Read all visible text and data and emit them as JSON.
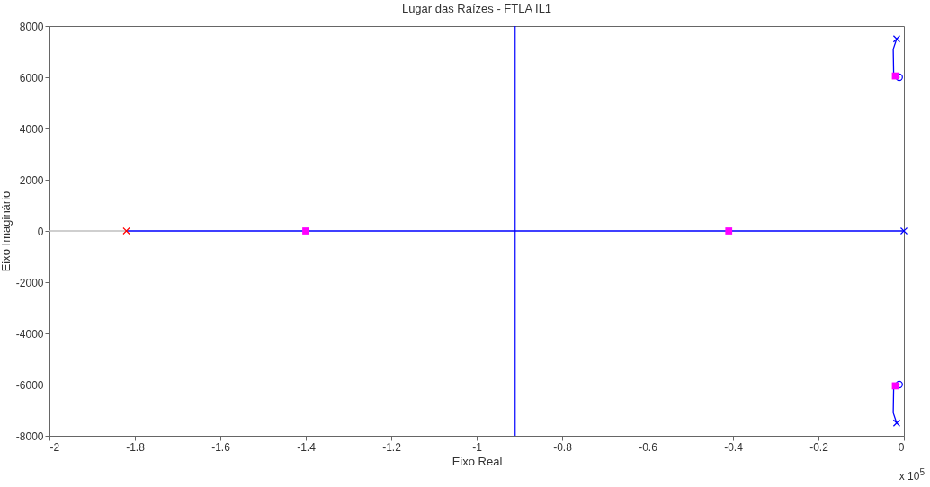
{
  "chart_data": {
    "type": "line",
    "title": "Lugar das Raízes - FTLA IL1",
    "xlabel": "Eixo Real",
    "ylabel": "Eixo Imaginário",
    "xlim": [
      -2,
      0
    ],
    "ylim": [
      -8000,
      8000
    ],
    "xticks": [
      -2,
      -1.8,
      -1.6,
      -1.4,
      -1.2,
      -1,
      -0.8,
      -0.6,
      -0.4,
      -0.2,
      0
    ],
    "yticks": [
      -8000,
      -6000,
      -4000,
      -2000,
      0,
      2000,
      4000,
      6000,
      8000
    ],
    "grid": false,
    "ref_lines": [
      {
        "axis": "x",
        "value": -0.91,
        "color": "#0000ff"
      }
    ],
    "annotations": [
      "x 10$^{5}$"
    ],
    "series": [
      {
        "color": "#c0c0c0",
        "x": [
          -2,
          -1.82
        ],
        "values": [
          0,
          0
        ]
      },
      {
        "color": "#0000ff",
        "x": [
          -1.82,
          0
        ],
        "values": [
          0,
          0
        ]
      },
      {
        "color": "#0000ff",
        "x": [
          -0.017,
          -0.025,
          -0.024,
          -0.016,
          -0.011
        ],
        "values": [
          7500,
          7100,
          6100,
          5950,
          6000
        ]
      },
      {
        "color": "#0000ff",
        "x": [
          -0.017,
          -0.025,
          -0.024,
          -0.016,
          -0.011
        ],
        "values": [
          -7500,
          -7100,
          -6100,
          -5950,
          -6000
        ]
      },
      {
        "type": "scatter",
        "marker": "cross",
        "color": "#ff0000",
        "x": [
          -1.82
        ],
        "values": [
          0
        ]
      },
      {
        "type": "scatter",
        "marker": "cross",
        "color": "#0000ff",
        "x": [
          0,
          -0.017,
          -0.017
        ],
        "values": [
          0,
          7500,
          -7500
        ]
      },
      {
        "type": "scatter",
        "marker": "circle",
        "color": "#0000ff",
        "x": [
          -0.011,
          -0.011
        ],
        "values": [
          6000,
          -6000
        ]
      },
      {
        "type": "scatter",
        "marker": "square",
        "color": "#ff00ff",
        "x": [
          -1.4,
          -0.41,
          -0.02,
          -0.02
        ],
        "values": [
          0,
          0,
          6050,
          -6050
        ]
      }
    ]
  }
}
